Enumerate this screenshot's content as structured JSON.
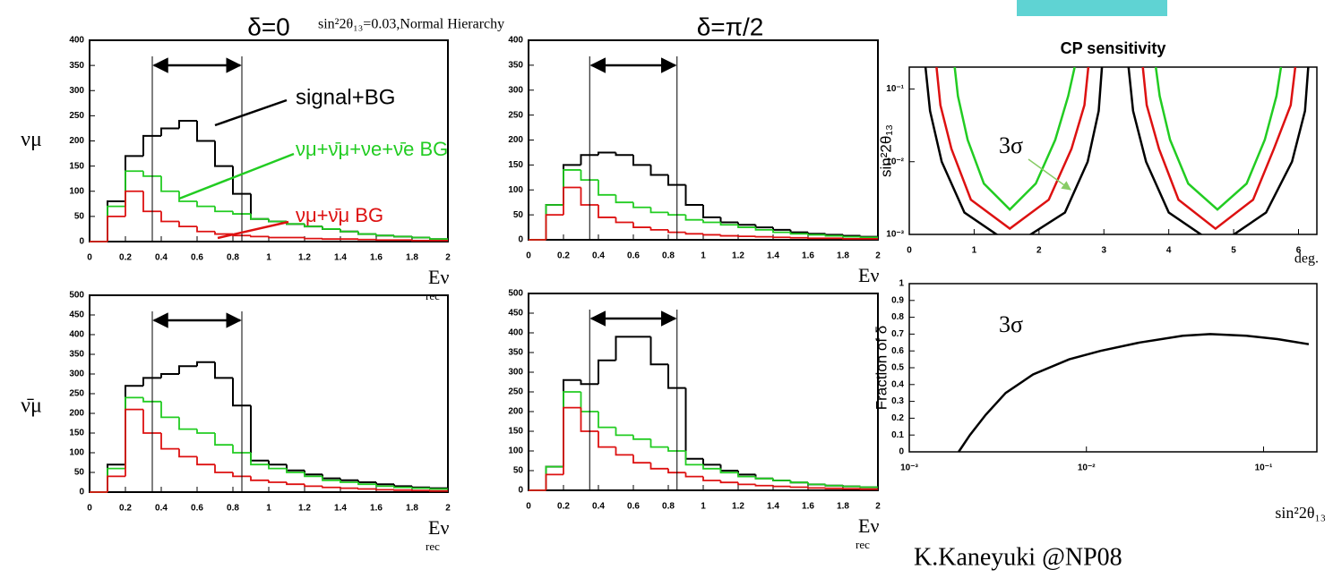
{
  "slide": {
    "column_titles": [
      "δ=0",
      "δ=π/2"
    ],
    "subtitle": "sin²2θ₁₃=0.03,Normal Hierarchy",
    "credit": "K.Kaneyuki @NP08"
  },
  "chart_data": [
    {
      "type": "histogram",
      "ylabel": "νμ",
      "xlabel": "Eν",
      "xlabel_sub": "rec",
      "bins": [
        0,
        0.1,
        0.2,
        0.3,
        0.4,
        0.5,
        0.6,
        0.7,
        0.8,
        0.9,
        1,
        1.1,
        1.2,
        1.3,
        1.4,
        1.5,
        1.6,
        1.7,
        1.8,
        1.9,
        2
      ],
      "window": [
        0.35,
        0.85
      ],
      "xlim": [
        0,
        2
      ],
      "xticks": [
        0,
        0.2,
        0.4,
        0.6,
        0.8,
        1,
        1.2,
        1.4,
        1.6,
        1.8,
        2
      ],
      "ylim": [
        0,
        400
      ],
      "yticks": [
        0,
        50,
        100,
        150,
        200,
        250,
        300,
        350,
        400
      ],
      "series": [
        {
          "color": "#000000",
          "values": [
            0,
            80,
            170,
            210,
            225,
            240,
            200,
            150,
            95,
            45,
            40,
            35,
            30,
            25,
            20,
            15,
            12,
            10,
            8,
            5
          ]
        },
        {
          "color": "#22cc22",
          "values": [
            0,
            70,
            140,
            130,
            100,
            80,
            70,
            60,
            55,
            45,
            40,
            35,
            30,
            25,
            20,
            15,
            12,
            10,
            8,
            5
          ]
        },
        {
          "color": "#dd1111",
          "values": [
            0,
            50,
            100,
            60,
            40,
            30,
            20,
            15,
            12,
            10,
            8,
            8,
            6,
            5,
            5,
            4,
            3,
            3,
            2,
            2
          ]
        }
      ],
      "annotations": [
        "signal+BG",
        "νμ+ν̄μ+νe+ν̄e BG",
        "νμ+ν̄μ BG"
      ]
    },
    {
      "type": "histogram",
      "xlabel": "Eν",
      "bins": [
        0,
        0.1,
        0.2,
        0.3,
        0.4,
        0.5,
        0.6,
        0.7,
        0.8,
        0.9,
        1,
        1.1,
        1.2,
        1.3,
        1.4,
        1.5,
        1.6,
        1.7,
        1.8,
        1.9,
        2
      ],
      "window": [
        0.35,
        0.85
      ],
      "xlim": [
        0,
        2
      ],
      "xticks": [
        0,
        0.2,
        0.4,
        0.6,
        0.8,
        1,
        1.2,
        1.4,
        1.6,
        1.8,
        2
      ],
      "ylim": [
        0,
        400
      ],
      "yticks": [
        0,
        50,
        100,
        150,
        200,
        250,
        300,
        350,
        400
      ],
      "series": [
        {
          "color": "#000000",
          "values": [
            0,
            70,
            150,
            170,
            175,
            170,
            150,
            130,
            110,
            70,
            45,
            35,
            30,
            25,
            20,
            15,
            12,
            10,
            8,
            6
          ]
        },
        {
          "color": "#22cc22",
          "values": [
            0,
            70,
            140,
            120,
            90,
            75,
            65,
            55,
            50,
            40,
            35,
            30,
            25,
            20,
            15,
            12,
            10,
            8,
            6,
            5
          ]
        },
        {
          "color": "#dd1111",
          "values": [
            0,
            50,
            105,
            70,
            45,
            35,
            25,
            20,
            15,
            12,
            10,
            8,
            7,
            6,
            5,
            4,
            3,
            3,
            2,
            2
          ]
        }
      ]
    },
    {
      "type": "histogram",
      "ylabel": "ν̄μ",
      "xlabel": "Eν",
      "xlabel_sub": "rec",
      "bins": [
        0,
        0.1,
        0.2,
        0.3,
        0.4,
        0.5,
        0.6,
        0.7,
        0.8,
        0.9,
        1,
        1.1,
        1.2,
        1.3,
        1.4,
        1.5,
        1.6,
        1.7,
        1.8,
        1.9,
        2
      ],
      "window": [
        0.35,
        0.85
      ],
      "xlim": [
        0,
        2
      ],
      "xticks": [
        0,
        0.2,
        0.4,
        0.6,
        0.8,
        1,
        1.2,
        1.4,
        1.6,
        1.8,
        2
      ],
      "ylim": [
        0,
        500
      ],
      "yticks": [
        0,
        50,
        100,
        150,
        200,
        250,
        300,
        350,
        400,
        450,
        500
      ],
      "series": [
        {
          "color": "#000000",
          "values": [
            0,
            70,
            270,
            290,
            300,
            320,
            330,
            290,
            220,
            80,
            70,
            55,
            45,
            35,
            30,
            25,
            20,
            15,
            12,
            10
          ]
        },
        {
          "color": "#22cc22",
          "values": [
            0,
            60,
            240,
            230,
            190,
            160,
            150,
            120,
            100,
            70,
            60,
            50,
            40,
            30,
            25,
            20,
            15,
            12,
            10,
            8
          ]
        },
        {
          "color": "#dd1111",
          "values": [
            0,
            40,
            210,
            150,
            110,
            90,
            70,
            50,
            40,
            30,
            25,
            20,
            15,
            12,
            10,
            8,
            6,
            5,
            4,
            3
          ]
        }
      ]
    },
    {
      "type": "histogram",
      "xlabel": "Eν",
      "xlabel_sub": "rec",
      "bins": [
        0,
        0.1,
        0.2,
        0.3,
        0.4,
        0.5,
        0.6,
        0.7,
        0.8,
        0.9,
        1,
        1.1,
        1.2,
        1.3,
        1.4,
        1.5,
        1.6,
        1.7,
        1.8,
        1.9,
        2
      ],
      "window": [
        0.35,
        0.85
      ],
      "xlim": [
        0,
        2
      ],
      "xticks": [
        0,
        0.2,
        0.4,
        0.6,
        0.8,
        1,
        1.2,
        1.4,
        1.6,
        1.8,
        2
      ],
      "ylim": [
        0,
        500
      ],
      "yticks": [
        0,
        50,
        100,
        150,
        200,
        250,
        300,
        350,
        400,
        450,
        500
      ],
      "series": [
        {
          "color": "#000000",
          "values": [
            0,
            60,
            280,
            270,
            330,
            390,
            390,
            320,
            260,
            80,
            65,
            50,
            40,
            30,
            25,
            20,
            15,
            12,
            10,
            8
          ]
        },
        {
          "color": "#22cc22",
          "values": [
            0,
            60,
            250,
            200,
            160,
            140,
            130,
            110,
            100,
            65,
            55,
            45,
            35,
            30,
            25,
            20,
            15,
            12,
            10,
            8
          ]
        },
        {
          "color": "#dd1111",
          "values": [
            0,
            40,
            210,
            150,
            110,
            90,
            70,
            55,
            45,
            35,
            25,
            20,
            15,
            12,
            10,
            8,
            6,
            5,
            4,
            3
          ]
        }
      ]
    },
    {
      "type": "contour",
      "title": "CP sensitivity",
      "ylabel": "sin²2θ₁₃",
      "xlabel": "deg.",
      "xlim": [
        0,
        6.283
      ],
      "xticks": [
        0,
        1,
        2,
        3,
        4,
        5,
        6
      ],
      "log_y": true,
      "ylim": [
        0.001,
        0.2
      ],
      "yticks": [
        {
          "value": 0.001,
          "label": "10⁻³"
        },
        {
          "value": 0.01,
          "label": "10⁻²"
        },
        {
          "value": 0.1,
          "label": "10⁻¹"
        }
      ],
      "annotation": "3σ",
      "series": [
        {
          "color": "#000000",
          "x": [
            0.25,
            0.32,
            0.5,
            0.85,
            1.6,
            2.4,
            2.75,
            2.92,
            2.97
          ],
          "values": [
            0.2,
            0.05,
            0.01,
            0.002,
            0.0007,
            0.002,
            0.01,
            0.05,
            0.2
          ]
        },
        {
          "color": "#000000",
          "x": [
            3.38,
            3.45,
            3.65,
            4.0,
            4.75,
            5.5,
            5.9,
            6.1,
            6.15
          ],
          "values": [
            0.2,
            0.05,
            0.01,
            0.002,
            0.0007,
            0.002,
            0.01,
            0.05,
            0.2
          ]
        },
        {
          "color": "#dd1111",
          "x": [
            0.42,
            0.48,
            0.65,
            0.95,
            1.55,
            2.15,
            2.5,
            2.7,
            2.76
          ],
          "values": [
            0.2,
            0.06,
            0.015,
            0.003,
            0.0012,
            0.003,
            0.015,
            0.06,
            0.2
          ]
        },
        {
          "color": "#dd1111",
          "x": [
            3.6,
            3.66,
            3.85,
            4.15,
            4.72,
            5.3,
            5.62,
            5.88,
            5.95
          ],
          "values": [
            0.2,
            0.06,
            0.015,
            0.003,
            0.0012,
            0.003,
            0.015,
            0.06,
            0.2
          ]
        },
        {
          "color": "#22cc22",
          "x": [
            0.7,
            0.75,
            0.9,
            1.15,
            1.55,
            1.95,
            2.25,
            2.45,
            2.55
          ],
          "values": [
            0.2,
            0.08,
            0.02,
            0.005,
            0.0022,
            0.005,
            0.02,
            0.08,
            0.2
          ]
        },
        {
          "color": "#22cc22",
          "x": [
            3.8,
            3.86,
            4.02,
            4.3,
            4.75,
            5.2,
            5.48,
            5.66,
            5.73
          ],
          "values": [
            0.2,
            0.08,
            0.02,
            0.005,
            0.0022,
            0.005,
            0.02,
            0.08,
            0.2
          ]
        }
      ]
    },
    {
      "type": "line",
      "ylabel": "Fraction of δ",
      "xlabel": "sin²2θ₁₃",
      "annotation": "3σ",
      "log_x": true,
      "xlim": [
        0.001,
        0.2
      ],
      "xticks": [
        {
          "value": 0.001,
          "label": "10⁻³"
        },
        {
          "value": 0.01,
          "label": "10⁻²"
        },
        {
          "value": 0.1,
          "label": "10⁻¹"
        }
      ],
      "ylim": [
        0,
        1
      ],
      "yticks": [
        0,
        0.1,
        0.2,
        0.3,
        0.4,
        0.5,
        0.6,
        0.7,
        0.8,
        0.9,
        1
      ],
      "series": [
        {
          "color": "#000000",
          "x": [
            0.0019,
            0.0022,
            0.0027,
            0.0035,
            0.005,
            0.008,
            0.012,
            0.02,
            0.035,
            0.05,
            0.08,
            0.12,
            0.18
          ],
          "values": [
            0,
            0.1,
            0.22,
            0.35,
            0.46,
            0.55,
            0.6,
            0.65,
            0.69,
            0.7,
            0.69,
            0.67,
            0.64
          ]
        }
      ]
    }
  ]
}
